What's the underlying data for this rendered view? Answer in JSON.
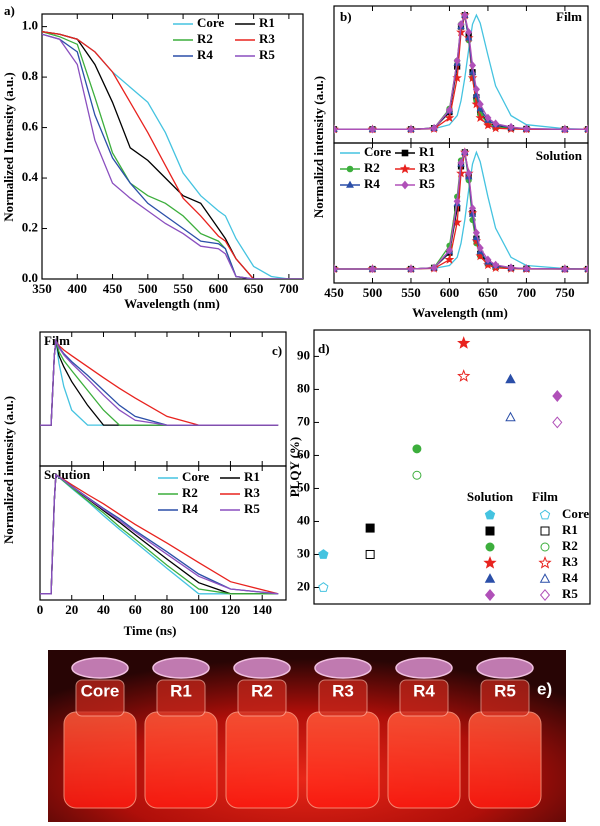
{
  "chart_data": [
    {
      "type": "line",
      "panel_label": "a)",
      "xlabel": "Wavelength (nm)",
      "ylabel": "Normalized Intensity (a.u.)",
      "x": [
        350,
        375,
        400,
        425,
        450,
        475,
        500,
        525,
        550,
        575,
        600,
        610,
        625,
        650,
        675,
        700,
        720
      ],
      "xlim": [
        350,
        720
      ],
      "xticks": [
        350,
        400,
        450,
        500,
        550,
        600,
        650,
        700
      ],
      "ylim": [
        0,
        1.05
      ],
      "yticks": [
        {
          "value": 0,
          "label": "0.0"
        },
        0.2,
        0.4,
        0.6,
        0.8,
        {
          "value": 1,
          "label": "1.0"
        }
      ],
      "legend": "upper right",
      "series": [
        {
          "name": "Core",
          "color": "#45c3e0",
          "values": [
            0.98,
            0.97,
            0.95,
            0.9,
            0.82,
            0.76,
            0.7,
            0.58,
            0.42,
            0.33,
            0.27,
            0.25,
            0.16,
            0.05,
            0.01,
            0,
            0
          ]
        },
        {
          "name": "R1",
          "color": "#000000",
          "values": [
            0.98,
            0.97,
            0.95,
            0.85,
            0.7,
            0.52,
            0.47,
            0.4,
            0.33,
            0.3,
            0.2,
            0.16,
            0.08,
            0,
            0,
            0,
            0
          ]
        },
        {
          "name": "R2",
          "color": "#3cae3c",
          "values": [
            0.98,
            0.96,
            0.93,
            0.72,
            0.5,
            0.38,
            0.33,
            0.3,
            0.25,
            0.18,
            0.15,
            0.12,
            0.01,
            0,
            0,
            0,
            0
          ]
        },
        {
          "name": "R3",
          "color": "#e8231f",
          "values": [
            0.98,
            0.97,
            0.95,
            0.9,
            0.82,
            0.7,
            0.58,
            0.45,
            0.32,
            0.25,
            0.17,
            0.15,
            0.08,
            0,
            0,
            0,
            0
          ]
        },
        {
          "name": "R4",
          "color": "#2b4fa8",
          "values": [
            0.97,
            0.95,
            0.9,
            0.65,
            0.48,
            0.38,
            0.3,
            0.25,
            0.2,
            0.15,
            0.14,
            0.12,
            0.01,
            0,
            0,
            0,
            0
          ]
        },
        {
          "name": "R5",
          "color": "#8a4fbf",
          "values": [
            0.97,
            0.95,
            0.85,
            0.55,
            0.38,
            0.32,
            0.27,
            0.22,
            0.18,
            0.13,
            0.12,
            0.1,
            0.01,
            0,
            0,
            0,
            0
          ]
        }
      ]
    },
    {
      "type": "line",
      "panel_label": "b)",
      "tag": "Film",
      "ylabel": "Normalizd intensity (a.u.)",
      "x": [
        450,
        500,
        550,
        580,
        600,
        610,
        615,
        620,
        625,
        630,
        635,
        640,
        650,
        660,
        680,
        700,
        750,
        780
      ],
      "xlim": [
        450,
        780
      ],
      "xticks": [
        450,
        500,
        550,
        600,
        650,
        700,
        750
      ],
      "ylim": [
        -0.12,
        1.08
      ],
      "series": [
        {
          "color": "#45c3e0",
          "values": [
            0,
            0,
            0,
            0.005,
            0.04,
            0.12,
            0.25,
            0.45,
            0.7,
            0.92,
            1,
            0.93,
            0.65,
            0.38,
            0.12,
            0.04,
            0.005,
            0
          ]
        },
        {
          "color": "#000000",
          "marker": "square",
          "values": [
            0,
            0,
            0,
            0.01,
            0.15,
            0.55,
            0.9,
            1,
            0.82,
            0.5,
            0.28,
            0.15,
            0.06,
            0.025,
            0.01,
            0.003,
            0,
            0
          ]
        },
        {
          "color": "#3cae3c",
          "marker": "circle",
          "values": [
            0,
            0,
            0,
            0.01,
            0.18,
            0.6,
            0.92,
            1,
            0.78,
            0.45,
            0.25,
            0.13,
            0.05,
            0.02,
            0.008,
            0.002,
            0,
            0
          ]
        },
        {
          "color": "#e8231f",
          "marker": "star",
          "values": [
            0,
            0,
            0,
            0.005,
            0.1,
            0.45,
            0.85,
            1,
            0.8,
            0.45,
            0.22,
            0.1,
            0.035,
            0.01,
            0.003,
            0,
            0,
            0
          ]
        },
        {
          "color": "#2b4fa8",
          "marker": "triangle",
          "values": [
            0,
            0,
            0,
            0.01,
            0.16,
            0.58,
            0.9,
            1,
            0.8,
            0.5,
            0.3,
            0.18,
            0.08,
            0.04,
            0.015,
            0.005,
            0,
            0
          ]
        },
        {
          "color": "#b050b8",
          "marker": "diamond",
          "values": [
            0,
            0,
            0,
            0.01,
            0.17,
            0.6,
            0.92,
            1,
            0.85,
            0.56,
            0.35,
            0.22,
            0.1,
            0.05,
            0.02,
            0.005,
            0,
            0
          ]
        }
      ]
    },
    {
      "type": "line",
      "tag": "Solution",
      "xlabel": "Wavelength (nm)",
      "x": [
        450,
        500,
        550,
        580,
        600,
        610,
        615,
        620,
        625,
        630,
        635,
        640,
        650,
        660,
        680,
        700,
        750,
        780
      ],
      "xlim": [
        450,
        780
      ],
      "xticks": [
        450,
        500,
        550,
        600,
        650,
        700,
        750
      ],
      "ylim": [
        -0.12,
        1.08
      ],
      "legend": "upper left",
      "series": [
        {
          "name": "Core",
          "color": "#45c3e0",
          "values": [
            0,
            0,
            0,
            0.005,
            0.03,
            0.1,
            0.22,
            0.42,
            0.68,
            0.9,
            1,
            0.92,
            0.62,
            0.35,
            0.1,
            0.03,
            0.004,
            0
          ]
        },
        {
          "name": "R1",
          "color": "#000000",
          "marker": "square",
          "values": [
            0,
            0,
            0,
            0.01,
            0.14,
            0.52,
            0.88,
            1,
            0.8,
            0.48,
            0.26,
            0.13,
            0.05,
            0.02,
            0.008,
            0.002,
            0,
            0
          ]
        },
        {
          "name": "R2",
          "color": "#3cae3c",
          "marker": "circle",
          "values": [
            0,
            0,
            0,
            0.012,
            0.2,
            0.62,
            0.93,
            1,
            0.76,
            0.42,
            0.22,
            0.11,
            0.04,
            0.015,
            0.006,
            0.002,
            0,
            0
          ]
        },
        {
          "name": "R3",
          "color": "#e8231f",
          "marker": "star",
          "values": [
            0,
            0,
            0,
            0.005,
            0.08,
            0.4,
            0.82,
            1,
            0.82,
            0.48,
            0.24,
            0.11,
            0.035,
            0.01,
            0.003,
            0,
            0,
            0
          ]
        },
        {
          "name": "R4",
          "color": "#2b4fa8",
          "marker": "triangle",
          "values": [
            0,
            0,
            0,
            0.01,
            0.15,
            0.56,
            0.9,
            1,
            0.79,
            0.47,
            0.27,
            0.15,
            0.06,
            0.03,
            0.01,
            0.003,
            0,
            0
          ]
        },
        {
          "name": "R5",
          "color": "#b050b8",
          "marker": "diamond",
          "values": [
            0,
            0,
            0,
            0.01,
            0.16,
            0.58,
            0.91,
            1,
            0.82,
            0.52,
            0.31,
            0.18,
            0.08,
            0.035,
            0.012,
            0.004,
            0,
            0
          ]
        }
      ]
    },
    {
      "type": "line",
      "panel_label": "c)",
      "tag": "Film",
      "ylabel": "Normalized intensity (a.u.)",
      "yscale": "log",
      "x": [
        0,
        7,
        9,
        10,
        12,
        15,
        20,
        30,
        40,
        50,
        60,
        80,
        100,
        120,
        150
      ],
      "xlim": [
        0,
        155
      ],
      "xticks": [
        0,
        20,
        40,
        60,
        80,
        100,
        120,
        140
      ],
      "ylim": [
        0.003,
        1.5
      ],
      "series": [
        {
          "color": "#45c3e0",
          "values": [
            0.02,
            0.02,
            0.5,
            1,
            0.35,
            0.12,
            0.04,
            0.02,
            0.02,
            0.02,
            0.02,
            0.02,
            0.02,
            0.02,
            0.02
          ]
        },
        {
          "color": "#000000",
          "values": [
            0.02,
            0.02,
            0.5,
            1,
            0.5,
            0.3,
            0.15,
            0.05,
            0.02,
            0.02,
            0.02,
            0.02,
            0.02,
            0.02,
            0.02
          ]
        },
        {
          "color": "#3cae3c",
          "values": [
            0.02,
            0.02,
            0.5,
            1,
            0.6,
            0.4,
            0.25,
            0.1,
            0.04,
            0.02,
            0.02,
            0.02,
            0.02,
            0.02,
            0.02
          ]
        },
        {
          "color": "#e8231f",
          "values": [
            0.02,
            0.02,
            0.5,
            1,
            0.8,
            0.65,
            0.5,
            0.3,
            0.18,
            0.11,
            0.07,
            0.03,
            0.02,
            0.02,
            0.02
          ]
        },
        {
          "color": "#2b4fa8",
          "values": [
            0.02,
            0.02,
            0.5,
            1,
            0.75,
            0.55,
            0.38,
            0.2,
            0.1,
            0.05,
            0.03,
            0.02,
            0.02,
            0.02,
            0.02
          ]
        },
        {
          "color": "#8a4fbf",
          "values": [
            0.02,
            0.02,
            0.5,
            1,
            0.72,
            0.52,
            0.35,
            0.17,
            0.08,
            0.04,
            0.025,
            0.02,
            0.02,
            0.02,
            0.02
          ]
        }
      ]
    },
    {
      "type": "line",
      "tag": "Solution",
      "xlabel": "Time (ns)",
      "yscale": "log",
      "x": [
        0,
        7,
        9,
        10,
        12,
        15,
        20,
        30,
        40,
        50,
        60,
        80,
        100,
        120,
        150
      ],
      "xlim": [
        0,
        155
      ],
      "xticks": [
        0,
        20,
        40,
        60,
        80,
        100,
        120,
        140
      ],
      "ylim": [
        0.003,
        1.5
      ],
      "legend": "upper right",
      "series": [
        {
          "name": "Core",
          "color": "#45c3e0",
          "values": [
            0.004,
            0.004,
            0.3,
            1,
            0.88,
            0.73,
            0.53,
            0.29,
            0.15,
            0.08,
            0.044,
            0.013,
            0.004,
            0.004,
            0.004
          ]
        },
        {
          "name": "R1",
          "color": "#000000",
          "values": [
            0.004,
            0.004,
            0.3,
            1,
            0.9,
            0.76,
            0.57,
            0.33,
            0.19,
            0.11,
            0.062,
            0.02,
            0.0067,
            0.004,
            0.004
          ]
        },
        {
          "name": "R2",
          "color": "#3cae3c",
          "values": [
            0.004,
            0.004,
            0.3,
            1,
            0.89,
            0.74,
            0.55,
            0.3,
            0.17,
            0.09,
            0.05,
            0.015,
            0.005,
            0.004,
            0.004
          ]
        },
        {
          "name": "R3",
          "color": "#e8231f",
          "values": [
            0.004,
            0.004,
            0.3,
            1,
            0.91,
            0.8,
            0.63,
            0.4,
            0.26,
            0.16,
            0.1,
            0.042,
            0.017,
            0.007,
            0.004
          ]
        },
        {
          "name": "R4",
          "color": "#2b4fa8",
          "values": [
            0.004,
            0.004,
            0.3,
            1,
            0.9,
            0.77,
            0.59,
            0.35,
            0.21,
            0.13,
            0.075,
            0.028,
            0.01,
            0.005,
            0.004
          ]
        },
        {
          "name": "R5",
          "color": "#8a4fbf",
          "values": [
            0.004,
            0.004,
            0.3,
            1,
            0.9,
            0.77,
            0.58,
            0.34,
            0.2,
            0.12,
            0.07,
            0.025,
            0.009,
            0.005,
            0.004
          ]
        }
      ]
    },
    {
      "type": "scatter",
      "panel_label": "d)",
      "ylabel": "PLQY (%)",
      "x": [
        1,
        2,
        3,
        4,
        5,
        6
      ],
      "xlim": [
        0.8,
        6.7
      ],
      "ylim": [
        15,
        98
      ],
      "yticks": [
        20,
        30,
        40,
        50,
        60,
        70,
        80,
        90
      ],
      "sample_names": [
        "Core",
        "R1",
        "R2",
        "R3",
        "R4",
        "R5"
      ],
      "colors": [
        "#45c3e0",
        "#000000",
        "#3cae3c",
        "#e8231f",
        "#2b4fa8",
        "#b050b8"
      ],
      "markers": [
        "pentagon",
        "square",
        "circle",
        "star",
        "triangle",
        "diamond"
      ],
      "series": [
        {
          "name": "Solution",
          "filled": true,
          "values": [
            30,
            38,
            62,
            94,
            83,
            78
          ]
        },
        {
          "name": "Film",
          "filled": false,
          "values": [
            20,
            30,
            54,
            84,
            71.5,
            70
          ]
        }
      ]
    }
  ],
  "photo": {
    "label": "e)",
    "vials": [
      "Core",
      "R1",
      "R2",
      "R3",
      "R4",
      "R5"
    ]
  }
}
